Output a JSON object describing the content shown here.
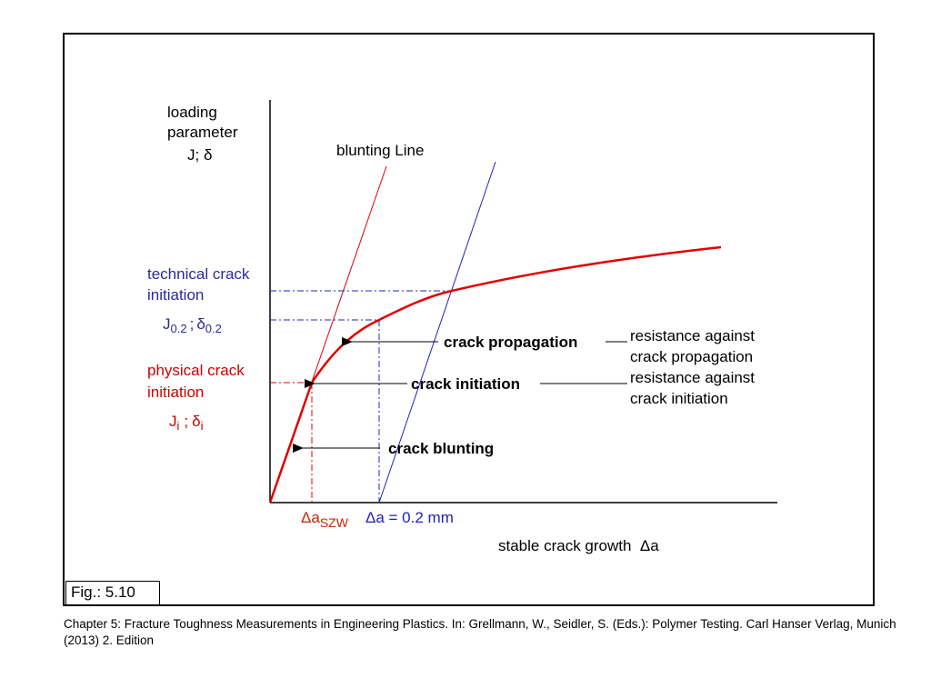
{
  "y_axis_label": {
    "line1": "loading",
    "line2": "parameter",
    "line3": "J; δ"
  },
  "blunting_line_label": "blunting Line",
  "technical_initiation": {
    "line1": "technical crack",
    "line2": "initiation",
    "symbol": {
      "j": "J",
      "j_sub": "0.2",
      "sep": ";",
      "d": "δ",
      "d_sub": "0.2"
    }
  },
  "physical_initiation": {
    "line1": "physical crack",
    "line2": "initiation",
    "symbol": {
      "j": "J",
      "j_sub": "i",
      "sep": ";",
      "d": "δ",
      "d_sub": "i"
    }
  },
  "stages": {
    "propagation": "crack propagation",
    "initiation": "crack initiation",
    "blunting": "crack blunting"
  },
  "resistances": {
    "propagation": {
      "line1": "resistance against",
      "line2": "crack propagation"
    },
    "initiation": {
      "line1": "resistance against",
      "line2": "crack initiation"
    }
  },
  "x_markers": {
    "szw": {
      "symbol": "Δa",
      "sub": "SZW"
    },
    "offset": "Δa = 0.2 mm"
  },
  "x_axis_label": "stable crack growth  Δa",
  "fig_label": "Fig.: 5.10",
  "caption": "Chapter 5: Fracture Toughness Measurements in Engineering Plastics. In: Grellmann, W., Seidler, S. (Eds.): Polymer Testing. Carl Hanser Verlag, Munich (2013) 2. Edition",
  "colors": {
    "curve": "#e00000",
    "blunting_line": "#e00000",
    "offset_line": "#2020c0",
    "technical_text": "#2a2a9a",
    "physical_text": "#cc0000",
    "szw_text": "#cc2200",
    "offset_text": "#2020c0",
    "arrows": "#000000"
  }
}
